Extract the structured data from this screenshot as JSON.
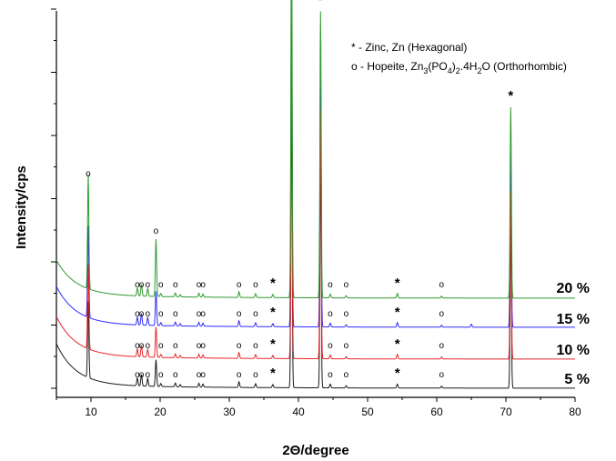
{
  "chart_data": {
    "type": "line",
    "title": "",
    "xlabel": "2Θ/degree",
    "ylabel": "Intensity/cps",
    "xlim": [
      5,
      80
    ],
    "x_ticks": [
      10,
      20,
      30,
      40,
      50,
      60,
      70,
      80
    ],
    "y_tick_labels": false,
    "grid": false,
    "legend": {
      "placement": "top-right",
      "zinc": {
        "symbol": "*",
        "text": " - Zinc, Zn (Hexagonal)"
      },
      "hopeite": {
        "symbol": "o",
        "text_parts": [
          {
            "t": " - Hopeite, Zn",
            "sub": false
          },
          {
            "t": "3",
            "sub": true
          },
          {
            "t": "(PO",
            "sub": false
          },
          {
            "t": "4",
            "sub": true
          },
          {
            "t": ")",
            "sub": false
          },
          {
            "t": "2",
            "sub": true
          },
          {
            "t": ".4H",
            "sub": false
          },
          {
            "t": "2",
            "sub": true
          },
          {
            "t": "O (Orthorhombic)",
            "sub": false
          }
        ]
      }
    },
    "series": [
      {
        "name": "5 %",
        "color": "#1a1a1a",
        "label": "5 %"
      },
      {
        "name": "10 %",
        "color": "#e8262a",
        "label": "10 %"
      },
      {
        "name": "15 %",
        "color": "#2b2bff",
        "label": "15 %"
      },
      {
        "name": "20 %",
        "color": "#2e9b2e",
        "label": "20 %"
      }
    ],
    "peaks": [
      {
        "x": 9.6,
        "type": "hopeite",
        "heights": [
          0.2,
          0.22,
          0.24,
          0.3
        ]
      },
      {
        "x": 16.7,
        "type": "hopeite",
        "heights": [
          0.02,
          0.02,
          0.02,
          0.02
        ]
      },
      {
        "x": 17.3,
        "type": "hopeite",
        "heights": [
          0.03,
          0.03,
          0.03,
          0.03
        ]
      },
      {
        "x": 18.2,
        "type": "hopeite",
        "heights": [
          0.02,
          0.02,
          0.02,
          0.02
        ]
      },
      {
        "x": 19.4,
        "type": "hopeite",
        "heights": [
          0.07,
          0.08,
          0.09,
          0.15
        ]
      },
      {
        "x": 20.1,
        "type": "hopeite",
        "heights": [
          0.008,
          0.008,
          0.008,
          0.008
        ]
      },
      {
        "x": 22.2,
        "type": "hopeite",
        "heights": [
          0.01,
          0.01,
          0.01,
          0.01
        ]
      },
      {
        "x": 22.9,
        "type": "hopeite",
        "heights": [
          0.006,
          0.006,
          0.006,
          0.006
        ]
      },
      {
        "x": 25.6,
        "type": "hopeite",
        "heights": [
          0.01,
          0.01,
          0.01,
          0.01
        ]
      },
      {
        "x": 26.2,
        "type": "hopeite",
        "heights": [
          0.008,
          0.008,
          0.008,
          0.008
        ]
      },
      {
        "x": 31.4,
        "type": "hopeite",
        "heights": [
          0.015,
          0.015,
          0.015,
          0.015
        ]
      },
      {
        "x": 33.8,
        "type": "hopeite",
        "heights": [
          0.01,
          0.01,
          0.01,
          0.01
        ]
      },
      {
        "x": 36.3,
        "type": "zinc",
        "heights": [
          0.008,
          0.008,
          0.008,
          0.008
        ]
      },
      {
        "x": 39.0,
        "type": "zinc",
        "heights": [
          0.75,
          0.8,
          0.85,
          1.0
        ]
      },
      {
        "x": 43.2,
        "type": "zinc",
        "heights": [
          0.6,
          0.65,
          0.7,
          0.75
        ]
      },
      {
        "x": 44.6,
        "type": "hopeite",
        "heights": [
          0.01,
          0.01,
          0.01,
          0.01
        ]
      },
      {
        "x": 46.9,
        "type": "hopeite",
        "heights": [
          0.006,
          0.006,
          0.006,
          0.006
        ]
      },
      {
        "x": 54.3,
        "type": "zinc",
        "heights": [
          0.01,
          0.012,
          0.012,
          0.012
        ]
      },
      {
        "x": 60.7,
        "type": "hopeite",
        "heights": [
          0.005,
          0.005,
          0.005,
          0.005
        ]
      },
      {
        "x": 65.0,
        "type": "none",
        "heights": [
          0.0,
          0.0,
          0.008,
          0.0
        ]
      },
      {
        "x": 70.7,
        "type": "zinc",
        "heights": [
          0.42,
          0.44,
          0.46,
          0.5
        ]
      }
    ],
    "markers": [
      {
        "symbol": "o",
        "x": 9.6,
        "series": 3,
        "top": true
      },
      {
        "symbol": "o",
        "x": 19.4,
        "series": 3,
        "top": true
      },
      {
        "symbol": "*",
        "x": 39.0,
        "series": 3,
        "top": true
      },
      {
        "symbol": "*",
        "x": 43.2,
        "series": 3,
        "top": true
      },
      {
        "symbol": "*",
        "x": 70.7,
        "series": 3,
        "top": true
      },
      {
        "symbol": "o",
        "x": 16.7,
        "series": "all"
      },
      {
        "symbol": "o",
        "x": 17.3,
        "series": "all"
      },
      {
        "symbol": "o",
        "x": 18.2,
        "series": "all"
      },
      {
        "symbol": "o",
        "x": 20.1,
        "series": "all"
      },
      {
        "symbol": "o",
        "x": 22.2,
        "series": "all"
      },
      {
        "symbol": "o",
        "x": 25.6,
        "series": "all"
      },
      {
        "symbol": "o",
        "x": 26.2,
        "series": "all"
      },
      {
        "symbol": "o",
        "x": 31.4,
        "series": "all"
      },
      {
        "symbol": "o",
        "x": 33.8,
        "series": "all"
      },
      {
        "symbol": "*",
        "x": 36.3,
        "series": "all"
      },
      {
        "symbol": "o",
        "x": 44.6,
        "series": "all"
      },
      {
        "symbol": "o",
        "x": 46.9,
        "series": "all"
      },
      {
        "symbol": "*",
        "x": 54.3,
        "series": "all"
      },
      {
        "symbol": "o",
        "x": 60.7,
        "series": "all"
      }
    ]
  }
}
